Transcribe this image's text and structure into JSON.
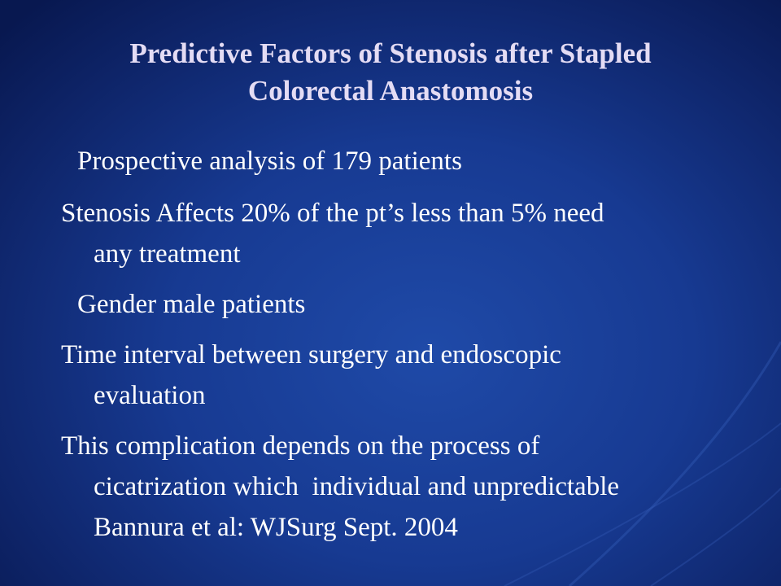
{
  "title": {
    "lines": [
      "Predictive Factors of Stenosis after Stapled",
      "Colorectal Anastomosis"
    ]
  },
  "body": {
    "paragraphs": [
      {
        "lines": [
          "Prospective analysis of 179 patients"
        ]
      },
      {
        "lines": [
          "Stenosis Affects 20% of the pt’s less than 5% need",
          "any treatment"
        ]
      },
      {
        "lines": [
          "Gender male patients"
        ]
      },
      {
        "lines": [
          "Time interval between surgery and endoscopic",
          "evaluation"
        ]
      },
      {
        "lines": [
          "This complication depends on the process of",
          "cicatrization which  individual and unpredictable",
          "Bannura et al: WJSurg Sept. 2004"
        ]
      }
    ]
  }
}
